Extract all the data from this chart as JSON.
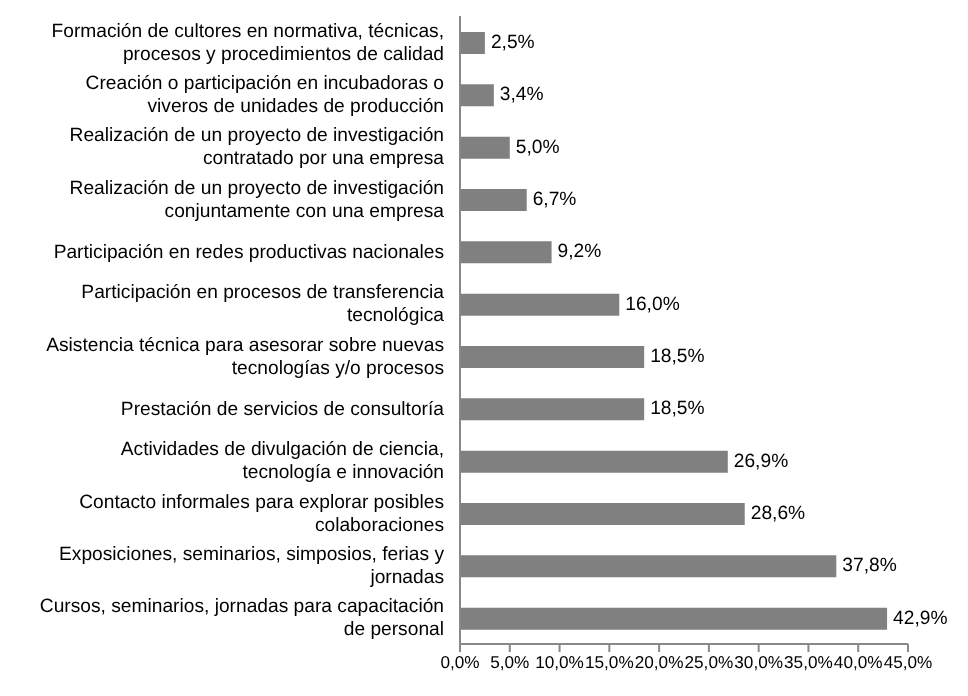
{
  "chart_data": {
    "type": "bar",
    "orientation": "horizontal",
    "categories": [
      "Formación de cultores en normativa, técnicas, procesos y procedimientos de calidad",
      "Creación o participación en incubadoras o viveros de unidades de producción",
      "Realización de un proyecto de investigación contratado por una empresa",
      "Realización de un proyecto de investigación conjuntamente con una empresa",
      "Participación en redes productivas nacionales",
      "Participación en procesos de transferencia tecnológica",
      "Asistencia técnica para asesorar sobre nuevas tecnologías y/o procesos",
      "Prestación de servicios de consultoría",
      "Actividades de divulgación de ciencia, tecnología e innovación",
      "Contacto informales para explorar posibles colaboraciones",
      "Exposiciones, seminarios, simposios, ferias y jornadas",
      "Cursos, seminarios, jornadas para capacitación de personal"
    ],
    "values": [
      2.5,
      3.4,
      5.0,
      6.7,
      9.2,
      16.0,
      18.5,
      18.5,
      26.9,
      28.6,
      37.8,
      42.9
    ],
    "value_labels": [
      "2,5%",
      "3,4%",
      "5,0%",
      "6,7%",
      "9,2%",
      "16,0%",
      "18,5%",
      "18,5%",
      "26,9%",
      "28,6%",
      "37,8%",
      "42,9%"
    ],
    "color": "#808080",
    "xlim": [
      0,
      45
    ],
    "xticks": [
      {
        "value": 0,
        "label": "0,0%"
      },
      {
        "value": 5,
        "label": "5,0%"
      },
      {
        "value": 10,
        "label": "10,0%"
      },
      {
        "value": 15,
        "label": "15,0%"
      },
      {
        "value": 20,
        "label": "20,0%"
      },
      {
        "value": 25,
        "label": "25,0%"
      },
      {
        "value": 30,
        "label": "30,0%"
      },
      {
        "value": 35,
        "label": "35,0%"
      },
      {
        "value": 40,
        "label": "40,0%"
      },
      {
        "value": 45,
        "label": "45,0%"
      }
    ],
    "grid": false
  }
}
